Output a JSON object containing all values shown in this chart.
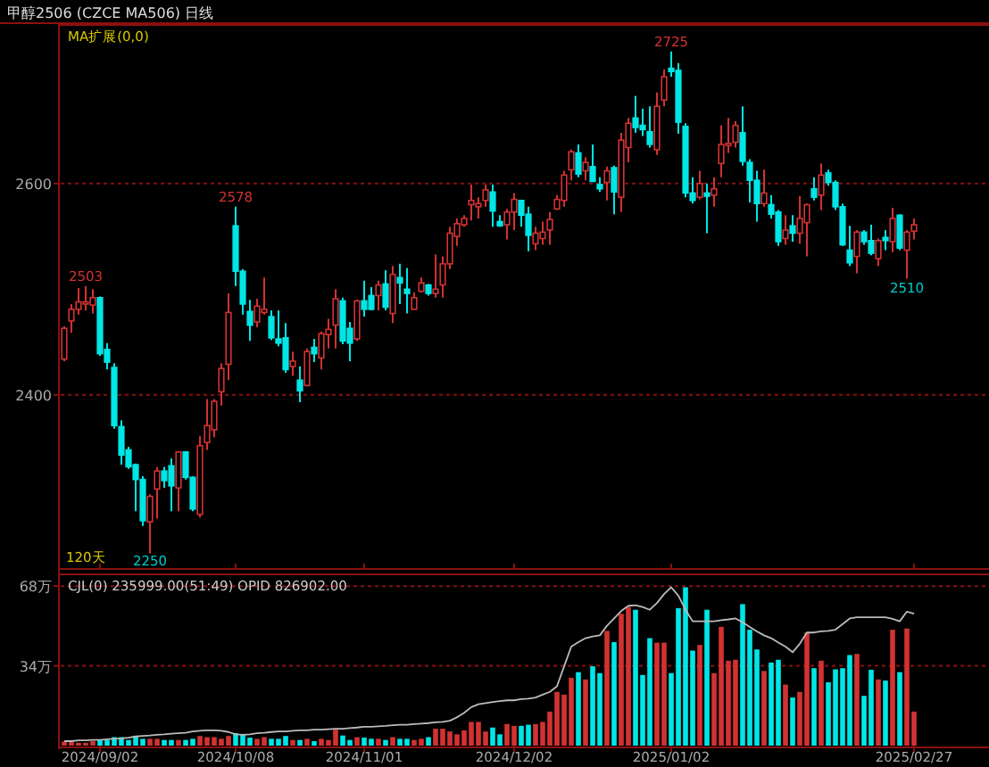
{
  "chart_data": [
    {
      "type": "candlestick",
      "title": "甲醇2506 (CZCE MA506) 日线",
      "subtitle": "MA扩展(0,0)",
      "categories": [
        null,
        null,
        null,
        null,
        null,
        "2024/09/02",
        null,
        null,
        null,
        null,
        null,
        null,
        null,
        null,
        null,
        null,
        null,
        null,
        null,
        null,
        null,
        null,
        null,
        null,
        "2024/10/08",
        null,
        null,
        null,
        null,
        null,
        null,
        null,
        null,
        null,
        null,
        null,
        null,
        null,
        null,
        null,
        null,
        null,
        "2024/11/01",
        null,
        null,
        null,
        null,
        null,
        null,
        null,
        null,
        null,
        null,
        null,
        null,
        null,
        null,
        null,
        null,
        null,
        null,
        null,
        null,
        "2024/12/02",
        null,
        null,
        null,
        null,
        null,
        null,
        null,
        null,
        null,
        null,
        null,
        null,
        null,
        null,
        null,
        null,
        null,
        null,
        null,
        null,
        null,
        "2025/01/02",
        null,
        null,
        null,
        null,
        null,
        null,
        null,
        null,
        null,
        null,
        null,
        null,
        null,
        null,
        null,
        null,
        null,
        null,
        null,
        null,
        null,
        null,
        null,
        null,
        null,
        null,
        null,
        null,
        null,
        null,
        null,
        null,
        null,
        "2025/02/27"
      ],
      "ohlc": [
        [
          2434,
          2465,
          2432,
          2463
        ],
        [
          2470,
          2486,
          2459,
          2481
        ],
        [
          2481,
          2501,
          2476,
          2488
        ],
        [
          2486,
          2503,
          2480,
          2488
        ],
        [
          2485,
          2500,
          2477,
          2492
        ],
        [
          2492,
          2493,
          2437,
          2439
        ],
        [
          2443,
          2449,
          2424,
          2431
        ],
        [
          2426,
          2430,
          2368,
          2371
        ],
        [
          2370,
          2376,
          2334,
          2343
        ],
        [
          2348,
          2351,
          2330,
          2332
        ],
        [
          2334,
          2335,
          2290,
          2320
        ],
        [
          2320,
          2323,
          2276,
          2281
        ],
        [
          2280,
          2306,
          2250,
          2304
        ],
        [
          2311,
          2332,
          2283,
          2328
        ],
        [
          2328,
          2332,
          2312,
          2319
        ],
        [
          2333,
          2340,
          2290,
          2314
        ],
        [
          2312,
          2347,
          2290,
          2346
        ],
        [
          2346,
          2347,
          2320,
          2322
        ],
        [
          2322,
          2323,
          2290,
          2292
        ],
        [
          2287,
          2361,
          2284,
          2352
        ],
        [
          2355,
          2396,
          2348,
          2371
        ],
        [
          2367,
          2396,
          2360,
          2394
        ],
        [
          2403,
          2430,
          2390,
          2425
        ],
        [
          2429,
          2496,
          2414,
          2478
        ],
        [
          2560,
          2578,
          2503,
          2517
        ],
        [
          2517,
          2519,
          2476,
          2486
        ],
        [
          2479,
          2490,
          2451,
          2466
        ],
        [
          2469,
          2491,
          2464,
          2484
        ],
        [
          2478,
          2511,
          2476,
          2481
        ],
        [
          2474,
          2480,
          2452,
          2454
        ],
        [
          2453,
          2480,
          2446,
          2449
        ],
        [
          2454,
          2468,
          2421,
          2424
        ],
        [
          2427,
          2441,
          2418,
          2432
        ],
        [
          2414,
          2427,
          2393,
          2404
        ],
        [
          2409,
          2444,
          2408,
          2441
        ],
        [
          2445,
          2453,
          2431,
          2439
        ],
        [
          2435,
          2460,
          2424,
          2458
        ],
        [
          2457,
          2472,
          2444,
          2462
        ],
        [
          2466,
          2500,
          2444,
          2491
        ],
        [
          2489,
          2492,
          2448,
          2451
        ],
        [
          2463,
          2469,
          2432,
          2449
        ],
        [
          2453,
          2490,
          2451,
          2489
        ],
        [
          2489,
          2508,
          2474,
          2481
        ],
        [
          2494,
          2502,
          2480,
          2481
        ],
        [
          2494,
          2508,
          2480,
          2504
        ],
        [
          2505,
          2518,
          2480,
          2483
        ],
        [
          2477,
          2522,
          2468,
          2514
        ],
        [
          2511,
          2524,
          2486,
          2506
        ],
        [
          2500,
          2520,
          2477,
          2496
        ],
        [
          2481,
          2497,
          2481,
          2492
        ],
        [
          2498,
          2511,
          2497,
          2506
        ],
        [
          2504,
          2505,
          2494,
          2496
        ],
        [
          2496,
          2533,
          2492,
          2500
        ],
        [
          2504,
          2531,
          2492,
          2524
        ],
        [
          2524,
          2559,
          2519,
          2553
        ],
        [
          2550,
          2567,
          2541,
          2562
        ],
        [
          2561,
          2570,
          2559,
          2567
        ],
        [
          2580,
          2599,
          2565,
          2584
        ],
        [
          2578,
          2587,
          2567,
          2581
        ],
        [
          2584,
          2599,
          2578,
          2594
        ],
        [
          2592,
          2599,
          2559,
          2574
        ],
        [
          2564,
          2570,
          2559,
          2560
        ],
        [
          2561,
          2576,
          2547,
          2573
        ],
        [
          2573,
          2591,
          2556,
          2585
        ],
        [
          2584,
          2584,
          2559,
          2570
        ],
        [
          2571,
          2578,
          2536,
          2551
        ],
        [
          2543,
          2559,
          2537,
          2553
        ],
        [
          2548,
          2564,
          2542,
          2554
        ],
        [
          2556,
          2573,
          2542,
          2566
        ],
        [
          2576,
          2589,
          2575,
          2585
        ],
        [
          2584,
          2612,
          2578,
          2608
        ],
        [
          2613,
          2632,
          2603,
          2630
        ],
        [
          2629,
          2637,
          2606,
          2609
        ],
        [
          2612,
          2625,
          2603,
          2620
        ],
        [
          2616,
          2637,
          2602,
          2602
        ],
        [
          2599,
          2606,
          2592,
          2595
        ],
        [
          2601,
          2616,
          2584,
          2612
        ],
        [
          2615,
          2617,
          2571,
          2592
        ],
        [
          2587,
          2648,
          2573,
          2641
        ],
        [
          2634,
          2662,
          2620,
          2657
        ],
        [
          2662,
          2683,
          2648,
          2653
        ],
        [
          2655,
          2671,
          2645,
          2651
        ],
        [
          2649,
          2673,
          2634,
          2637
        ],
        [
          2632,
          2686,
          2627,
          2673
        ],
        [
          2679,
          2708,
          2673,
          2701
        ],
        [
          2709,
          2725,
          2701,
          2706
        ],
        [
          2707,
          2714,
          2647,
          2658
        ],
        [
          2654,
          2657,
          2587,
          2591
        ],
        [
          2591,
          2606,
          2581,
          2584
        ],
        [
          2587,
          2612,
          2585,
          2600
        ],
        [
          2591,
          2600,
          2553,
          2588
        ],
        [
          2589,
          2606,
          2578,
          2595
        ],
        [
          2619,
          2655,
          2606,
          2637
        ],
        [
          2636,
          2662,
          2629,
          2638
        ],
        [
          2639,
          2659,
          2634,
          2655
        ],
        [
          2648,
          2673,
          2617,
          2621
        ],
        [
          2620,
          2623,
          2582,
          2603
        ],
        [
          2603,
          2612,
          2564,
          2581
        ],
        [
          2581,
          2613,
          2578,
          2591
        ],
        [
          2580,
          2589,
          2567,
          2571
        ],
        [
          2573,
          2575,
          2541,
          2545
        ],
        [
          2548,
          2570,
          2542,
          2556
        ],
        [
          2560,
          2570,
          2545,
          2553
        ],
        [
          2553,
          2588,
          2543,
          2567
        ],
        [
          2563,
          2581,
          2531,
          2580
        ],
        [
          2595,
          2606,
          2584,
          2587
        ],
        [
          2589,
          2619,
          2575,
          2608
        ],
        [
          2610,
          2613,
          2598,
          2601
        ],
        [
          2601,
          2603,
          2575,
          2578
        ],
        [
          2578,
          2581,
          2541,
          2542
        ],
        [
          2537,
          2560,
          2522,
          2525
        ],
        [
          2531,
          2556,
          2515,
          2554
        ],
        [
          2554,
          2556,
          2542,
          2545
        ],
        [
          2546,
          2561,
          2532,
          2534
        ],
        [
          2529,
          2548,
          2522,
          2546
        ],
        [
          2549,
          2556,
          2537,
          2546
        ],
        [
          2545,
          2577,
          2535,
          2567
        ],
        [
          2570,
          2571,
          2537,
          2539
        ],
        [
          2537,
          2556,
          2510,
          2554
        ],
        [
          2555,
          2567,
          2547,
          2561
        ]
      ],
      "colors": [
        "#d23232",
        "#d23232",
        "#d23232",
        "#d23232",
        "#d23232",
        "#00e6e6",
        "#00e6e6",
        "#00e6e6",
        "#00e6e6",
        "#00e6e6",
        "#00e6e6",
        "#00e6e6",
        "#d23232",
        "#d23232",
        "#00e6e6",
        "#00e6e6",
        "#d23232",
        "#00e6e6",
        "#00e6e6",
        "#d23232",
        "#d23232",
        "#d23232",
        "#d23232",
        "#d23232",
        "#00e6e6",
        "#00e6e6",
        "#00e6e6",
        "#d23232",
        "#d23232",
        "#00e6e6",
        "#00e6e6",
        "#00e6e6",
        "#d23232",
        "#00e6e6",
        "#d23232",
        "#00e6e6",
        "#d23232",
        "#d23232",
        "#d23232",
        "#00e6e6",
        "#00e6e6",
        "#d23232",
        "#00e6e6",
        "#00e6e6",
        "#d23232",
        "#00e6e6",
        "#d23232",
        "#00e6e6",
        "#00e6e6",
        "#d23232",
        "#d23232",
        "#00e6e6",
        "#d23232",
        "#d23232",
        "#d23232",
        "#d23232",
        "#d23232",
        "#d23232",
        "#d23232",
        "#d23232",
        "#00e6e6",
        "#00e6e6",
        "#d23232",
        "#d23232",
        "#00e6e6",
        "#00e6e6",
        "#d23232",
        "#d23232",
        "#d23232",
        "#d23232",
        "#d23232",
        "#d23232",
        "#00e6e6",
        "#d23232",
        "#00e6e6",
        "#00e6e6",
        "#d23232",
        "#00e6e6",
        "#d23232",
        "#d23232",
        "#00e6e6",
        "#00e6e6",
        "#00e6e6",
        "#d23232",
        "#d23232",
        "#00e6e6",
        "#00e6e6",
        "#00e6e6",
        "#00e6e6",
        "#d23232",
        "#00e6e6",
        "#d23232",
        "#d23232",
        "#d23232",
        "#d23232",
        "#00e6e6",
        "#00e6e6",
        "#00e6e6",
        "#d23232",
        "#00e6e6",
        "#00e6e6",
        "#d23232",
        "#00e6e6",
        "#d23232",
        "#d23232",
        "#00e6e6",
        "#d23232",
        "#00e6e6",
        "#00e6e6",
        "#00e6e6",
        "#00e6e6",
        "#d23232",
        "#00e6e6",
        "#00e6e6",
        "#d23232",
        "#00e6e6",
        "#d23232",
        "#00e6e6",
        "#d23232",
        "#d23232"
      ],
      "ylim": [
        2237,
        2750
      ],
      "yticks": [
        2400,
        2600
      ],
      "grid": "y",
      "tick_labels": "y",
      "annotations": [
        {
          "text": "2503",
          "y": 2503
        },
        {
          "text": "2250",
          "y": 2250
        },
        {
          "text": "2578",
          "y": 2578
        },
        {
          "text": "2725",
          "y": 2725
        },
        {
          "text": "2510",
          "y": 2510
        },
        "120天"
      ]
    },
    {
      "type": "bar",
      "subtitle": "CJL(0) 235999.00(51:49) OPID 826902.00",
      "categories": [
        null,
        null,
        null,
        null,
        null,
        "2024/09/02",
        null,
        null,
        null,
        null,
        null,
        null,
        null,
        null,
        null,
        null,
        null,
        null,
        null,
        null,
        null,
        null,
        null,
        null,
        "2024/10/08",
        null,
        null,
        null,
        null,
        null,
        null,
        null,
        null,
        null,
        null,
        null,
        null,
        null,
        null,
        null,
        null,
        null,
        "2024/11/01",
        null,
        null,
        null,
        null,
        null,
        null,
        null,
        null,
        null,
        null,
        null,
        null,
        null,
        null,
        null,
        null,
        null,
        null,
        null,
        null,
        "2024/12/02",
        null,
        null,
        null,
        null,
        null,
        null,
        null,
        null,
        null,
        null,
        null,
        null,
        null,
        null,
        null,
        null,
        null,
        null,
        null,
        null,
        null,
        "2025/01/02",
        null,
        null,
        null,
        null,
        null,
        null,
        null,
        null,
        null,
        null,
        null,
        null,
        null,
        null,
        null,
        null,
        null,
        null,
        null,
        null,
        null,
        null,
        null,
        null,
        null,
        null,
        null,
        null,
        null,
        null,
        null,
        null,
        null,
        "2025/02/27"
      ],
      "series": [
        {
          "values": [
            1.7,
            1.7,
            1.2,
            1.2,
            1.9,
            2.4,
            2.4,
            3.6,
            3.6,
            2.4,
            4.1,
            2.9,
            2.9,
            2.9,
            2.4,
            2.4,
            2.4,
            2.4,
            2.9,
            4.1,
            3.6,
            3.6,
            2.9,
            4.1,
            5.3,
            4.8,
            3.4,
            2.9,
            3.6,
            2.9,
            2.9,
            4.1,
            2.4,
            2.4,
            2.9,
            1.9,
            2.9,
            2.4,
            6.8,
            4.3,
            2.4,
            3.6,
            3.4,
            2.9,
            2.9,
            2.4,
            3.6,
            2.9,
            2.9,
            2.4,
            2.9,
            3.6,
            7.2,
            7.2,
            6.0,
            4.8,
            6.5,
            10.1,
            10.1,
            6.0,
            7.7,
            4.8,
            9.2,
            8.4,
            8.4,
            8.9,
            9.2,
            10.1,
            14.5,
            22.9,
            21.7,
            28.9,
            31.3,
            28.2,
            33.8,
            30.9,
            48.9,
            44.1,
            56.2,
            59.1,
            57.9,
            30.1,
            45.8,
            43.9,
            43.9,
            30.9,
            58.6,
            67.5,
            40.5,
            42.9,
            57.9,
            30.9,
            50.6,
            36.2,
            36.6,
            60.3,
            49.4,
            41.0,
            31.8,
            35.4,
            36.6,
            26.0,
            20.5,
            22.9,
            48.2,
            33.0,
            36.2,
            27.0,
            32.5,
            33.0,
            38.6,
            39.1,
            21.2,
            32.3,
            28.2,
            27.7,
            49.4,
            31.3,
            49.9,
            14.5
          ],
          "colors": [
            "#d23232",
            "#d23232",
            "#d23232",
            "#d23232",
            "#d23232",
            "#00e6e6",
            "#00e6e6",
            "#00e6e6",
            "#00e6e6",
            "#00e6e6",
            "#00e6e6",
            "#00e6e6",
            "#d23232",
            "#d23232",
            "#00e6e6",
            "#00e6e6",
            "#d23232",
            "#00e6e6",
            "#00e6e6",
            "#d23232",
            "#d23232",
            "#d23232",
            "#d23232",
            "#d23232",
            "#00e6e6",
            "#00e6e6",
            "#00e6e6",
            "#d23232",
            "#d23232",
            "#00e6e6",
            "#00e6e6",
            "#00e6e6",
            "#d23232",
            "#00e6e6",
            "#d23232",
            "#00e6e6",
            "#d23232",
            "#d23232",
            "#d23232",
            "#00e6e6",
            "#00e6e6",
            "#d23232",
            "#00e6e6",
            "#00e6e6",
            "#d23232",
            "#00e6e6",
            "#d23232",
            "#00e6e6",
            "#00e6e6",
            "#d23232",
            "#d23232",
            "#00e6e6",
            "#d23232",
            "#d23232",
            "#d23232",
            "#d23232",
            "#d23232",
            "#d23232",
            "#d23232",
            "#d23232",
            "#00e6e6",
            "#00e6e6",
            "#d23232",
            "#d23232",
            "#00e6e6",
            "#00e6e6",
            "#d23232",
            "#d23232",
            "#d23232",
            "#d23232",
            "#d23232",
            "#d23232",
            "#00e6e6",
            "#d23232",
            "#00e6e6",
            "#00e6e6",
            "#d23232",
            "#00e6e6",
            "#d23232",
            "#d23232",
            "#00e6e6",
            "#00e6e6",
            "#00e6e6",
            "#d23232",
            "#d23232",
            "#00e6e6",
            "#00e6e6",
            "#00e6e6",
            "#00e6e6",
            "#d23232",
            "#00e6e6",
            "#d23232",
            "#d23232",
            "#d23232",
            "#d23232",
            "#00e6e6",
            "#00e6e6",
            "#00e6e6",
            "#d23232",
            "#00e6e6",
            "#00e6e6",
            "#d23232",
            "#00e6e6",
            "#d23232",
            "#d23232",
            "#00e6e6",
            "#d23232",
            "#00e6e6",
            "#00e6e6",
            "#00e6e6",
            "#00e6e6",
            "#d23232",
            "#00e6e6",
            "#00e6e6",
            "#d23232",
            "#00e6e6",
            "#d23232",
            "#00e6e6",
            "#d23232",
            "#d23232"
          ]
        },
        {
          "type": "line",
          "color": "#bbbbbb",
          "values": [
            1.9,
            1.9,
            2.2,
            2.2,
            2.4,
            2.4,
            2.7,
            2.9,
            3.1,
            3.4,
            3.9,
            4.1,
            4.3,
            4.6,
            4.8,
            5.1,
            5.3,
            5.5,
            6.0,
            6.3,
            6.5,
            6.5,
            6.3,
            5.8,
            4.8,
            4.6,
            4.8,
            5.3,
            5.5,
            5.8,
            6.0,
            6.0,
            6.3,
            6.5,
            6.5,
            6.8,
            6.8,
            7.0,
            7.2,
            7.2,
            7.5,
            7.7,
            8.0,
            8.0,
            8.2,
            8.4,
            8.7,
            8.9,
            8.9,
            9.2,
            9.4,
            9.6,
            9.9,
            10.1,
            10.6,
            12.1,
            14.0,
            16.4,
            17.6,
            18.1,
            18.6,
            19.0,
            19.3,
            19.3,
            19.8,
            20.0,
            20.5,
            21.7,
            22.9,
            25.3,
            33.8,
            42.2,
            44.1,
            45.8,
            46.5,
            47.0,
            51.1,
            54.2,
            57.4,
            59.6,
            59.8,
            59.1,
            57.9,
            60.8,
            64.6,
            67.5,
            63.9,
            57.9,
            53.0,
            53.0,
            53.0,
            53.0,
            53.5,
            53.8,
            54.2,
            52.6,
            50.6,
            48.7,
            47.0,
            45.8,
            43.9,
            42.2,
            39.8,
            43.4,
            48.2,
            48.2,
            48.7,
            48.9,
            49.4,
            51.8,
            54.2,
            54.7,
            54.7,
            54.7,
            54.7,
            54.7,
            54.0,
            53.0,
            57.1,
            56.2
          ]
        }
      ],
      "ylim": [
        0,
        73
      ],
      "yticks": [
        {
          "value": 34,
          "label": "34万"
        },
        {
          "value": 68,
          "label": "68万"
        }
      ],
      "grid": "y"
    }
  ]
}
